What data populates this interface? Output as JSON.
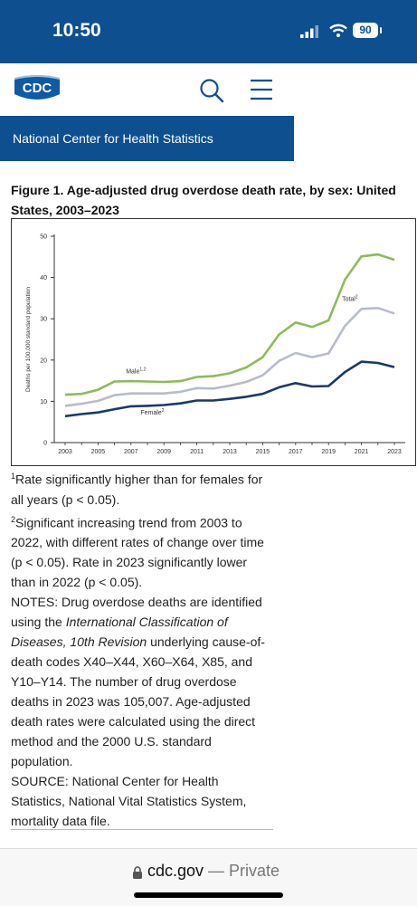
{
  "status": {
    "time": "10:50",
    "battery": "90"
  },
  "header": {
    "logo_text": "CDC",
    "search_label": "search",
    "menu_label": "menu"
  },
  "banner": {
    "title": "National Center for Health Statistics"
  },
  "figure": {
    "title": "Figure 1. Age-adjusted drug overdose death rate, by sex: United States, 2003–2023"
  },
  "chart_data": {
    "type": "line",
    "ylabel": "Deaths per 100,000 standard population",
    "xlabel": "",
    "ylim": [
      0,
      50
    ],
    "yticks": [
      "0",
      "10",
      "20",
      "30",
      "40",
      "50"
    ],
    "x": [
      2003,
      2004,
      2005,
      2006,
      2007,
      2008,
      2009,
      2010,
      2011,
      2012,
      2013,
      2014,
      2015,
      2016,
      2017,
      2018,
      2019,
      2020,
      2021,
      2022,
      2023
    ],
    "xticks": [
      "2003",
      "2005",
      "2007",
      "2009",
      "2011",
      "2013",
      "2015",
      "2017",
      "2019",
      "2021",
      "2023"
    ],
    "grid": false,
    "series": [
      {
        "name": "Male",
        "sup": "1,2",
        "color": "#8dbb5c",
        "values": [
          11.6,
          11.8,
          12.8,
          14.8,
          14.9,
          14.8,
          14.7,
          14.9,
          15.9,
          16.1,
          16.8,
          18.2,
          20.7,
          26.2,
          29.1,
          28.0,
          29.6,
          39.5,
          45.1,
          45.6,
          44.3
        ]
      },
      {
        "name": "Total",
        "sup": "2",
        "color": "#b7bccb",
        "values": [
          8.9,
          9.4,
          10.1,
          11.5,
          11.9,
          11.9,
          11.9,
          12.3,
          13.2,
          13.1,
          13.8,
          14.7,
          16.3,
          19.8,
          21.7,
          20.7,
          21.6,
          28.3,
          32.4,
          32.6,
          31.3
        ]
      },
      {
        "name": "Female",
        "sup": "2",
        "color": "#1a3a66",
        "values": [
          6.4,
          6.9,
          7.3,
          8.1,
          8.8,
          8.9,
          9.1,
          9.5,
          10.2,
          10.2,
          10.6,
          11.1,
          11.8,
          13.4,
          14.4,
          13.6,
          13.7,
          17.1,
          19.6,
          19.3,
          18.3
        ]
      }
    ]
  },
  "notes": {
    "note1": "Rate significantly higher than for females for all years (p < 0.05).",
    "note2": "Significant increasing trend from 2003 to 2022, with different rates of change over time (p < 0.05). Rate in 2023 significantly lower than in 2022 (p < 0.05).",
    "notes_label": "NOTES: Drug overdose deaths are identified using the ",
    "icd": "International Classification of Diseases, 10th Revision",
    "notes_rest": " underlying cause-of-death codes X40–X44, X60–X64, X85, and Y10–Y14. The number of drug overdose deaths in 2023 was 105,007. Age-adjusted death rates were calculated using the direct method and the 2000 U.S. standard population.",
    "source": "SOURCE: National Center for Health Statistics, National Vital Statistics System, mortality data file."
  },
  "browser": {
    "domain": "cdc.gov",
    "mode": " — Private"
  }
}
